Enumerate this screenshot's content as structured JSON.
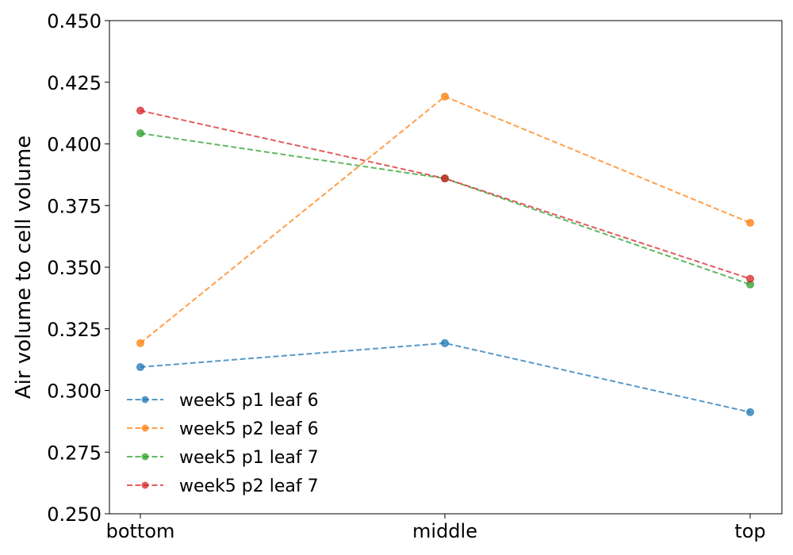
{
  "chart_data": {
    "type": "line",
    "categories": [
      "bottom",
      "middle",
      "top"
    ],
    "title": "",
    "xlabel": "",
    "ylabel": "Air volume to cell volume",
    "ylim": [
      0.25,
      0.45
    ],
    "yticks": [
      "0.250",
      "0.275",
      "0.300",
      "0.325",
      "0.350",
      "0.375",
      "0.400",
      "0.425",
      "0.450"
    ],
    "grid": false,
    "legend_position": "lower-left",
    "series": [
      {
        "name": "week5 p1 leaf 6",
        "color": "#1f77b4",
        "values": [
          0.3095,
          0.3192,
          0.2912
        ]
      },
      {
        "name": "week5 p2 leaf 6",
        "color": "#ff7f0e",
        "values": [
          0.3192,
          0.4192,
          0.368
        ]
      },
      {
        "name": "week5 p1 leaf 7",
        "color": "#2ca02c",
        "values": [
          0.4043,
          0.386,
          0.343
        ]
      },
      {
        "name": "week5 p2 leaf 7",
        "color": "#d62728",
        "values": [
          0.4135,
          0.386,
          0.3453
        ]
      }
    ]
  }
}
